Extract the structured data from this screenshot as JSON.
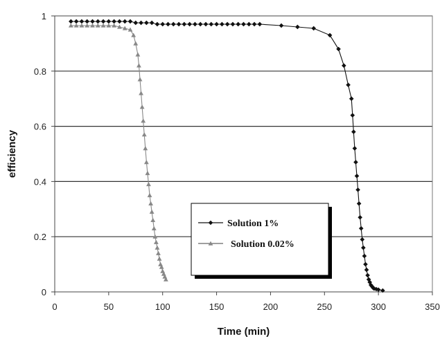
{
  "chart_data": {
    "type": "line",
    "title": "",
    "xlabel": "Time (min)",
    "ylabel": "efficiency",
    "xlim": [
      0,
      350
    ],
    "ylim": [
      0,
      1
    ],
    "x_ticks": [
      0,
      50,
      100,
      150,
      200,
      250,
      300,
      350
    ],
    "y_ticks": [
      0,
      0.2,
      0.4,
      0.6,
      0.8,
      1
    ],
    "y_tick_labels": [
      "0",
      "0.2",
      "0.4",
      "0.6",
      "0.8",
      "1"
    ],
    "grid": "horizontal",
    "legend_position": "center",
    "series": [
      {
        "name": "Solution 1%",
        "marker": "diamond",
        "color": "#111111",
        "x": [
          15,
          20,
          25,
          30,
          35,
          40,
          45,
          50,
          55,
          60,
          65,
          70,
          75,
          80,
          85,
          90,
          95,
          100,
          105,
          110,
          115,
          120,
          125,
          130,
          135,
          140,
          145,
          150,
          155,
          160,
          165,
          170,
          175,
          180,
          185,
          190,
          210,
          225,
          240,
          255,
          263,
          268,
          272,
          275,
          276,
          277,
          278,
          279,
          280,
          281,
          282,
          283,
          284,
          285,
          286,
          287,
          288,
          289,
          290,
          291,
          292,
          293,
          294,
          295,
          296,
          298,
          300,
          304
        ],
        "y": [
          0.98,
          0.98,
          0.98,
          0.98,
          0.98,
          0.98,
          0.98,
          0.98,
          0.98,
          0.98,
          0.98,
          0.98,
          0.975,
          0.975,
          0.975,
          0.975,
          0.97,
          0.97,
          0.97,
          0.97,
          0.97,
          0.97,
          0.97,
          0.97,
          0.97,
          0.97,
          0.97,
          0.97,
          0.97,
          0.97,
          0.97,
          0.97,
          0.97,
          0.97,
          0.97,
          0.97,
          0.965,
          0.96,
          0.955,
          0.93,
          0.88,
          0.82,
          0.75,
          0.7,
          0.64,
          0.58,
          0.52,
          0.47,
          0.42,
          0.37,
          0.32,
          0.27,
          0.23,
          0.19,
          0.16,
          0.13,
          0.1,
          0.08,
          0.06,
          0.045,
          0.035,
          0.025,
          0.02,
          0.015,
          0.012,
          0.01,
          0.008,
          0.005
        ]
      },
      {
        "name": "Solution 0.02%",
        "marker": "triangle",
        "color": "#888888",
        "x": [
          15,
          20,
          25,
          30,
          35,
          40,
          45,
          50,
          55,
          60,
          65,
          70,
          73,
          75,
          77,
          78,
          79,
          80,
          81,
          82,
          83,
          84,
          85,
          86,
          87,
          88,
          89,
          90,
          91,
          92,
          93,
          94,
          95,
          96,
          97,
          98,
          99,
          100,
          101,
          102,
          103
        ],
        "y": [
          0.965,
          0.965,
          0.965,
          0.965,
          0.965,
          0.965,
          0.965,
          0.965,
          0.965,
          0.96,
          0.955,
          0.95,
          0.93,
          0.9,
          0.86,
          0.82,
          0.77,
          0.72,
          0.67,
          0.62,
          0.57,
          0.52,
          0.47,
          0.43,
          0.39,
          0.35,
          0.32,
          0.29,
          0.26,
          0.23,
          0.2,
          0.18,
          0.16,
          0.14,
          0.12,
          0.1,
          0.09,
          0.075,
          0.065,
          0.055,
          0.045
        ]
      }
    ]
  }
}
